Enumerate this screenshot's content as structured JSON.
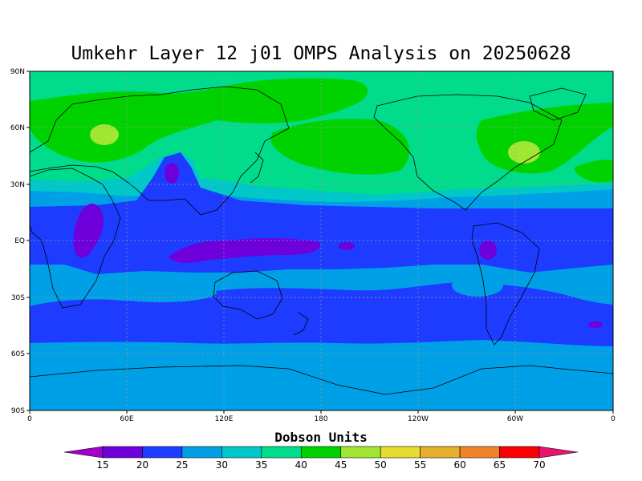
{
  "title": "Umkehr Layer 12 j01 OMPS Analysis on 20250628",
  "lat_labels": [
    "90N",
    "60N",
    "30N",
    "EQ",
    "30S",
    "60S",
    "90S"
  ],
  "lon_labels": [
    "0",
    "60E",
    "120E",
    "180",
    "120W",
    "60W",
    "0"
  ],
  "colorbar": {
    "title": "Dobson Units",
    "levels": [
      "15",
      "20",
      "25",
      "30",
      "35",
      "40",
      "45",
      "50",
      "55",
      "60",
      "65",
      "70"
    ],
    "colors": [
      "#a000c8",
      "#6e00dc",
      "#1e3cff",
      "#00a0e6",
      "#00c8c8",
      "#00dc8c",
      "#00d200",
      "#a0e632",
      "#e6dc32",
      "#e6af2d",
      "#f08228",
      "#fa0000",
      "#e6146e"
    ]
  },
  "field_colors": {
    "c20": "#6e00dc",
    "c25": "#1e3cff",
    "c30": "#00a0e6",
    "c35": "#00c8c8",
    "c40": "#00dc8c",
    "c45": "#00d200",
    "c50": "#a0e632"
  }
}
